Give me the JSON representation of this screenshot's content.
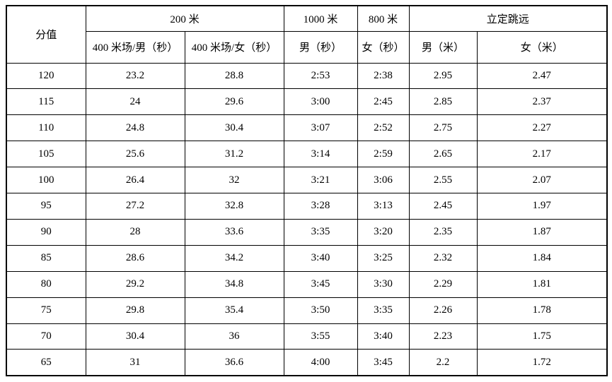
{
  "table": {
    "header_row1": [
      {
        "label": "分值"
      },
      {
        "label": "200 米"
      },
      {
        "label": "1000 米"
      },
      {
        "label": "800 米"
      },
      {
        "label": "立定跳远"
      }
    ],
    "header_row2": [
      "400 米场/男（秒）",
      "400 米场/女（秒）",
      "男（秒）",
      "女（秒）",
      "男（米）",
      "女（米）"
    ],
    "rows": [
      [
        "120",
        "23.2",
        "28.8",
        "2:53",
        "2:38",
        "2.95",
        "2.47"
      ],
      [
        "115",
        "24",
        "29.6",
        "3:00",
        "2:45",
        "2.85",
        "2.37"
      ],
      [
        "110",
        "24.8",
        "30.4",
        "3:07",
        "2:52",
        "2.75",
        "2.27"
      ],
      [
        "105",
        "25.6",
        "31.2",
        "3:14",
        "2:59",
        "2.65",
        "2.17"
      ],
      [
        "100",
        "26.4",
        "32",
        "3:21",
        "3:06",
        "2.55",
        "2.07"
      ],
      [
        "95",
        "27.2",
        "32.8",
        "3:28",
        "3:13",
        "2.45",
        "1.97"
      ],
      [
        "90",
        "28",
        "33.6",
        "3:35",
        "3:20",
        "2.35",
        "1.87"
      ],
      [
        "85",
        "28.6",
        "34.2",
        "3:40",
        "3:25",
        "2.32",
        "1.84"
      ],
      [
        "80",
        "29.2",
        "34.8",
        "3:45",
        "3:30",
        "2.29",
        "1.81"
      ],
      [
        "75",
        "29.8",
        "35.4",
        "3:50",
        "3:35",
        "2.26",
        "1.78"
      ],
      [
        "70",
        "30.4",
        "36",
        "3:55",
        "3:40",
        "2.23",
        "1.75"
      ],
      [
        "65",
        "31",
        "36.6",
        "4:00",
        "3:45",
        "2.2",
        "1.72"
      ]
    ]
  },
  "colors": {
    "border": "#000000",
    "background": "#ffffff",
    "text": "#000000"
  }
}
